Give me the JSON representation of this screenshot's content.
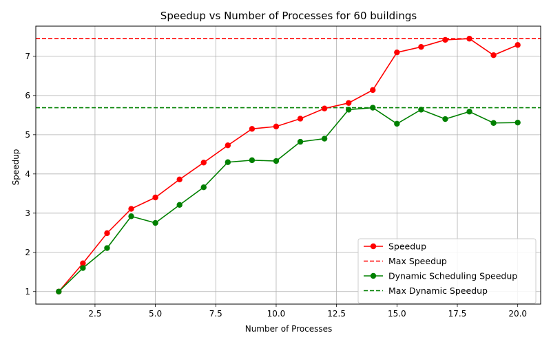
{
  "chart_data": {
    "type": "line",
    "title": "Speedup vs Number of Processes for 60 buildings",
    "xlabel": "Number of Processes",
    "ylabel": "Speedup",
    "xlim": [
      0.05,
      20.95
    ],
    "ylim": [
      0.68,
      7.77
    ],
    "xticks": [
      2.5,
      5.0,
      7.5,
      10.0,
      12.5,
      15.0,
      17.5,
      20.0
    ],
    "xtick_labels": [
      "2.5",
      "5.0",
      "7.5",
      "10.0",
      "12.5",
      "15.0",
      "17.5",
      "20.0"
    ],
    "yticks": [
      1,
      2,
      3,
      4,
      5,
      6,
      7
    ],
    "ytick_labels": [
      "1",
      "2",
      "3",
      "4",
      "5",
      "6",
      "7"
    ],
    "grid": true,
    "legend_position": "bottom-right",
    "x": [
      1,
      2,
      3,
      4,
      5,
      6,
      7,
      8,
      9,
      10,
      11,
      12,
      13,
      14,
      15,
      16,
      17,
      18,
      19,
      20
    ],
    "series": [
      {
        "name": "Speedup",
        "color": "#ff0000",
        "style": "solid-marker",
        "values": [
          1.0,
          1.72,
          2.49,
          3.11,
          3.4,
          3.86,
          4.29,
          4.73,
          5.15,
          5.21,
          5.41,
          5.67,
          5.81,
          6.14,
          7.1,
          7.24,
          7.42,
          7.45,
          7.03,
          7.29
        ]
      },
      {
        "name": "Max Speedup",
        "color": "#ff0000",
        "style": "dashed-hline",
        "value": 7.45
      },
      {
        "name": "Dynamic Scheduling Speedup",
        "color": "#008000",
        "style": "solid-marker",
        "values": [
          1.0,
          1.6,
          2.11,
          2.92,
          2.75,
          3.21,
          3.66,
          4.3,
          4.35,
          4.33,
          4.82,
          4.9,
          5.64,
          5.69,
          5.28,
          5.64,
          5.4,
          5.59,
          5.3,
          5.31
        ]
      },
      {
        "name": "Max Dynamic Speedup",
        "color": "#008000",
        "style": "dashed-hline",
        "value": 5.69
      }
    ]
  }
}
